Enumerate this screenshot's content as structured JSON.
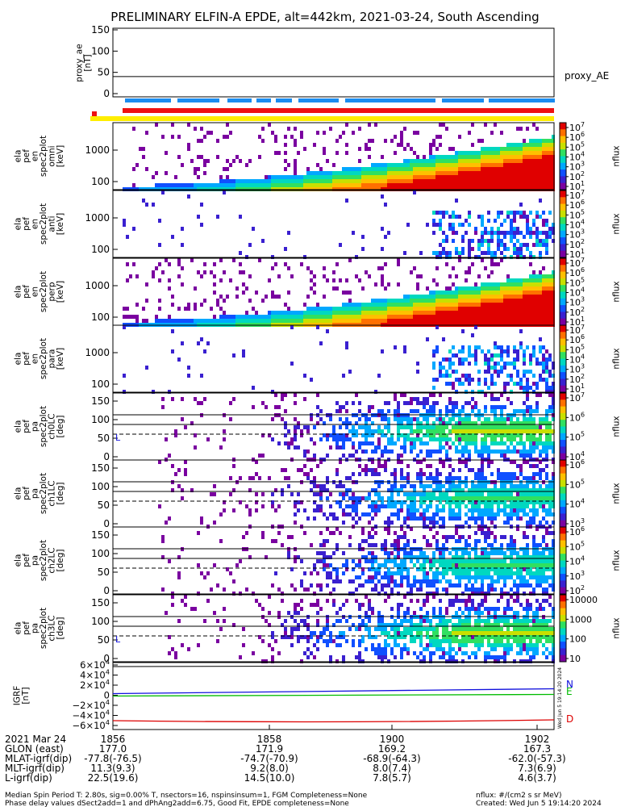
{
  "title": "PRELIMINARY ELFIN-A EPDE, alt=442km, 2021-03-24, South Ascending",
  "colors": {
    "spectrogram": [
      "#7a00a0",
      "#3a20d0",
      "#1050ff",
      "#00a8ff",
      "#00d8c0",
      "#30e060",
      "#c8e000",
      "#ffc000",
      "#ff7000",
      "#e00000"
    ],
    "flag_red": "#ee1111",
    "flag_yellow": "#ffee00",
    "flag_blue": "#1a8cf0",
    "igrf_n": "#1010dd",
    "igrf_e": "#00bb00",
    "igrf_d": "#dd0000"
  },
  "panels": {
    "proxy_ae": {
      "ylabel": "proxy_ae\n[nT]",
      "yticks": [
        "150",
        "100",
        "50",
        "0"
      ],
      "legend": "proxy_AE",
      "ylim": [
        0,
        150
      ],
      "value": 40
    },
    "spectrograms": [
      {
        "ylabel": "ela\npef\nen\nspec2plot\nomni\n[keV]",
        "yticks": [
          "1000",
          "100"
        ],
        "cbar_ticks": [
          "10^7",
          "10^6",
          "10^5",
          "10^4",
          "10^3",
          "10^2",
          "10^1"
        ],
        "cbar_label": "nflux",
        "kind": "energy_strong"
      },
      {
        "ylabel": "ela\npef\nen\nspec2plot\nanti\n[keV]",
        "yticks": [
          "1000",
          "100"
        ],
        "cbar_ticks": [
          "10^7",
          "10^6",
          "10^5",
          "10^4",
          "10^3",
          "10^2",
          "10^1"
        ],
        "cbar_label": "nflux",
        "kind": "energy_weak"
      },
      {
        "ylabel": "ela\npef\nen\nspec2plot\nperp\n[keV]",
        "yticks": [
          "1000",
          "100"
        ],
        "cbar_ticks": [
          "10^7",
          "10^6",
          "10^5",
          "10^4",
          "10^3",
          "10^2",
          "10^1"
        ],
        "cbar_label": "nflux",
        "kind": "energy_strong"
      },
      {
        "ylabel": "ela\npef\nen\nspec2plot\npara\n[keV]",
        "yticks": [
          "1000",
          "100"
        ],
        "cbar_ticks": [
          "10^7",
          "10^6",
          "10^5",
          "10^4",
          "10^3",
          "10^2",
          "10^1"
        ],
        "cbar_label": "nflux",
        "kind": "energy_weak"
      },
      {
        "ylabel": "ela\npef\npa\nspec2plot\nch0LC\n[deg]",
        "yticks": [
          "150",
          "100",
          "50",
          "0"
        ],
        "cbar_ticks": [
          "10^7",
          "10^6",
          "10^5",
          "10^4"
        ],
        "cbar_label": "nflux",
        "kind": "pitch",
        "lc_label": "L"
      },
      {
        "ylabel": "ela\npef\npa\nspec2plot\nch1LC\n[deg]",
        "yticks": [
          "150",
          "100",
          "50",
          "0"
        ],
        "cbar_ticks": [
          "10^6",
          "10^5",
          "10^4",
          "10^3"
        ],
        "cbar_label": "nflux",
        "kind": "pitch",
        "lc_label": ""
      },
      {
        "ylabel": "ela\npef\npa\nspec2plot\nch2LC\n[deg]",
        "yticks": [
          "150",
          "100",
          "50",
          "0"
        ],
        "cbar_ticks": [
          "10^6",
          "10^5",
          "10^4",
          "10^3",
          "10^2"
        ],
        "cbar_label": "nflux",
        "kind": "pitch",
        "lc_label": ""
      },
      {
        "ylabel": "ela\npef\npa\nspec2plot\nch3LC\n[deg]",
        "yticks": [
          "150",
          "100",
          "50",
          "0"
        ],
        "cbar_ticks": [
          "10000",
          "1000",
          "100",
          "10"
        ],
        "cbar_label": "nflux",
        "kind": "pitch",
        "lc_label": "L"
      }
    ],
    "igrf": {
      "ylabel": "IGRF\n[nT]",
      "yticks": [
        "6×10^4",
        "4×10^4",
        "2×10^4",
        "0",
        "−2×10^4",
        "−4×10^4",
        "−6×10^4"
      ],
      "legend": [
        "N",
        "E",
        "D"
      ]
    }
  },
  "stamp": "Wed Jun  5 19:14:20 2024",
  "ephemeris": {
    "date": "2021 Mar 24",
    "times": [
      "1856",
      "1858",
      "1900",
      "1902"
    ],
    "rows": [
      {
        "label": "GLON (east)",
        "values": [
          "177.0",
          "171.9",
          "169.2",
          "167.3"
        ]
      },
      {
        "label": "MLAT-igrf(dip)",
        "values": [
          "-77.8(-76.5)",
          "-74.7(-70.9)",
          "-68.9(-64.3)",
          "-62.0(-57.3)"
        ]
      },
      {
        "label": "MLT-igrf(dip)",
        "values": [
          "11.3(9.3)",
          "9.2(8.0)",
          "8.0(7.4)",
          "7.3(6.9)"
        ]
      },
      {
        "label": "L-igrf(dip)",
        "values": [
          "22.5(19.6)",
          "14.5(10.0)",
          "7.8(5.7)",
          "4.6(3.7)"
        ]
      }
    ]
  },
  "footer": {
    "line1": "Median Spin Period T: 2.80s, sig=0.00% T, nsectors=16, nspinsinsum=1, FGM Completeness=None",
    "line2": "Phase delay values dSect2add=1 and dPhAng2add=6.75, Good Fit, EPDE completeness=None",
    "units": "nflux: #/(cm2 s sr MeV)",
    "created": "Created: Wed Jun  5 19:14:20 2024"
  }
}
